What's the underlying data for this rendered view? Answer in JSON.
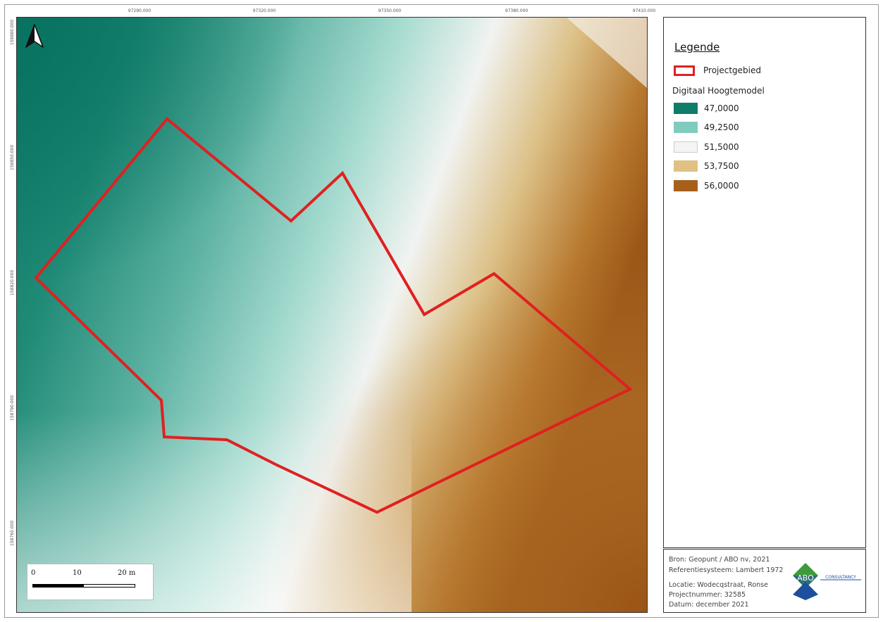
{
  "map": {
    "x_coords": [
      "97290.000",
      "97320.000",
      "97350.000",
      "97380.000",
      "97410.000"
    ],
    "y_coords": [
      "158880.000",
      "158850.000",
      "158820.000",
      "158790.000",
      "158760.000"
    ],
    "north_arrow_icon": "north-arrow-icon",
    "scale_bar": {
      "labels": [
        "0",
        "10",
        "20 m"
      ]
    },
    "boundary_color": "#e02020"
  },
  "legend": {
    "title": "Legende",
    "project_area": {
      "label": "Projectgebied",
      "color": "#e02020"
    },
    "dem_title": "Digitaal Hoogtemodel",
    "dem_classes": [
      {
        "label": "47,0000",
        "color": "#0e7d6a"
      },
      {
        "label": "49,2500",
        "color": "#80cbbe"
      },
      {
        "label": "51,5000",
        "color": "#f4f4f2"
      },
      {
        "label": "53,7500",
        "color": "#dfc184"
      },
      {
        "label": "56,0000",
        "color": "#a85f1c"
      }
    ]
  },
  "info": {
    "source": "Bron: Geopunt / ABO nv, 2021",
    "crs": "Referentiesysteem: Lambert 1972",
    "location": "Locatie: Wodecqstraat, Ronse",
    "project_number": "Projectnummer: 32585",
    "date": "Datum: december 2021",
    "logo": {
      "text": "ABO",
      "tagline": "CONSULTANCY"
    }
  }
}
